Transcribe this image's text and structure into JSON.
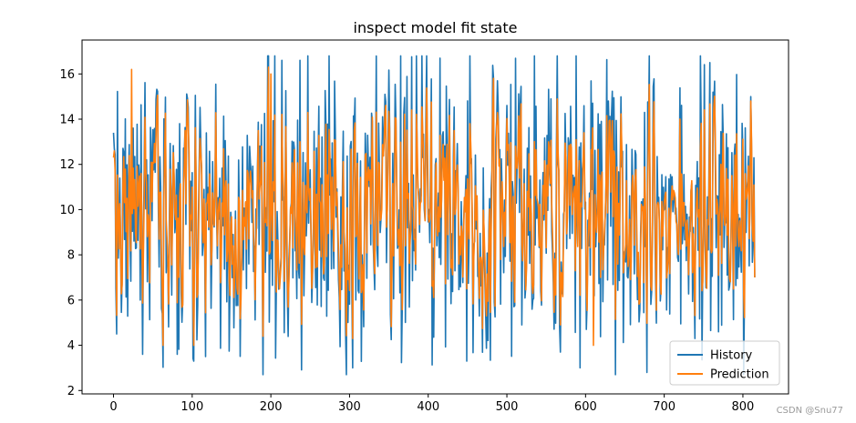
{
  "chart_data": {
    "type": "line",
    "title": "inspect model fit state",
    "xlabel": "",
    "ylabel": "",
    "xlim": [
      -40,
      858
    ],
    "ylim": [
      1.85,
      17.5
    ],
    "xticks": [
      0,
      100,
      200,
      300,
      400,
      500,
      600,
      700,
      800
    ],
    "yticks": [
      2,
      4,
      6,
      8,
      10,
      12,
      14,
      16
    ],
    "legend_position": "lower-right",
    "n_points": 816,
    "series": [
      {
        "name": "History",
        "color": "#1f77b4",
        "approx_mean": 10.0,
        "approx_range": [
          2.7,
          16.8
        ],
        "key_points": [
          {
            "x": 0,
            "y": 13.4
          },
          {
            "x": 4,
            "y": 4.5
          },
          {
            "x": 37,
            "y": 3.6
          },
          {
            "x": 81,
            "y": 3.6
          },
          {
            "x": 102,
            "y": 3.3
          },
          {
            "x": 117,
            "y": 3.5
          },
          {
            "x": 205,
            "y": 16.8
          },
          {
            "x": 304,
            "y": 3.0
          },
          {
            "x": 415,
            "y": 16.7
          },
          {
            "x": 449,
            "y": 3.3
          },
          {
            "x": 453,
            "y": 16.8
          },
          {
            "x": 568,
            "y": 3.7
          },
          {
            "x": 638,
            "y": 2.7
          },
          {
            "x": 678,
            "y": 2.8
          },
          {
            "x": 758,
            "y": 16.5
          },
          {
            "x": 810,
            "y": 15.0
          },
          {
            "x": 815,
            "y": 7.0
          }
        ]
      },
      {
        "name": "Prediction",
        "color": "#ff7f0e",
        "approx_mean": 10.0,
        "approx_range": [
          4.0,
          16.3
        ],
        "key_points": [
          {
            "x": 0,
            "y": 12.3
          },
          {
            "x": 23,
            "y": 16.2
          },
          {
            "x": 200,
            "y": 16.0
          },
          {
            "x": 304,
            "y": 4.3
          },
          {
            "x": 610,
            "y": 4.0
          },
          {
            "x": 810,
            "y": 14.8
          },
          {
            "x": 815,
            "y": 7.0
          }
        ]
      }
    ]
  },
  "watermark": "CSDN @Snu77"
}
